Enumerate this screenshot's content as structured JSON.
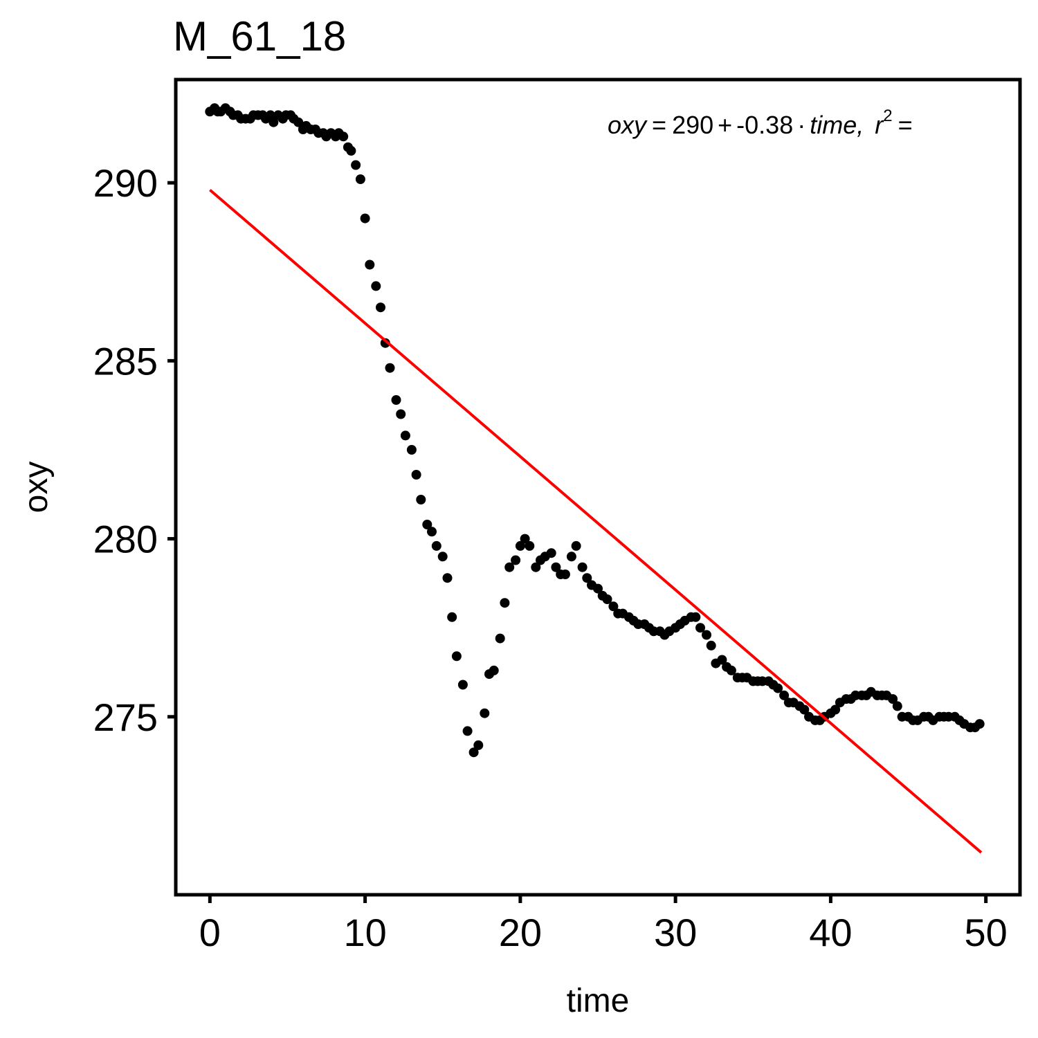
{
  "colors": {
    "points": "#000000",
    "fit_line": "#ff0000",
    "frame": "#000000",
    "background": "#ffffff"
  },
  "chart_data": {
    "type": "scatter",
    "title": "M_61_18",
    "xlabel": "time",
    "ylabel": "oxy",
    "xlim": [
      -2.2,
      52.2
    ],
    "ylim": [
      270.0,
      292.9
    ],
    "x_ticks": [
      0,
      10,
      20,
      30,
      40,
      50
    ],
    "y_ticks": [
      275,
      280,
      285,
      290
    ],
    "x_tick_labels": [
      "0",
      "10",
      "20",
      "30",
      "40",
      "50"
    ],
    "y_tick_labels": [
      "275",
      "280",
      "285",
      "290"
    ],
    "grid": false,
    "legend": "none",
    "annotation": {
      "y_symbol": "oxy",
      "eq_sign": "=",
      "intercept": "290",
      "plus_sign": "+",
      "slope": "-0.38",
      "dot": "·",
      "x_symbol": "time",
      "comma": ",",
      "r2_symbol": "r",
      "r2_superscript": "2",
      "r2_eq": "="
    },
    "fit": {
      "intercept": 289.8,
      "slope": -0.3745,
      "x_start": 0,
      "x_end": 49.7
    },
    "series": [
      {
        "x": [
          0.0,
          0.3,
          0.5,
          0.7,
          1.0,
          1.3,
          1.5,
          1.8,
          2.0,
          2.3,
          2.6,
          2.8,
          3.1,
          3.4,
          3.6,
          3.9,
          4.1,
          4.4,
          4.7,
          4.9,
          5.2,
          5.4,
          5.7,
          6.0,
          6.2,
          6.5,
          6.8,
          7.0,
          7.3,
          7.5,
          7.8,
          8.1,
          8.3,
          8.6,
          8.9,
          9.1,
          9.4,
          9.7,
          10.0,
          10.3,
          10.7,
          11.0,
          11.3,
          11.6,
          12.0,
          12.3,
          12.6,
          13.0,
          13.3,
          13.6,
          14.0,
          14.3,
          14.6,
          15.0,
          15.3,
          15.6,
          15.9,
          16.3,
          16.6,
          17.0,
          17.3,
          17.7,
          18.0,
          18.3,
          18.7,
          19.0,
          19.3,
          19.7,
          20.0,
          20.3,
          20.6,
          21.0,
          21.3,
          21.6,
          22.0,
          22.3,
          22.6,
          22.9,
          23.3,
          23.6,
          24.0,
          24.3,
          24.6,
          25.0,
          25.3,
          25.6,
          26.0,
          26.3,
          26.6,
          27.0,
          27.3,
          27.6,
          28.0,
          28.3,
          28.6,
          29.0,
          29.3,
          29.6,
          30.0,
          30.3,
          30.6,
          31.0,
          31.3,
          31.6,
          32.0,
          32.3,
          32.6,
          33.0,
          33.3,
          33.6,
          34.0,
          34.3,
          34.6,
          35.0,
          35.3,
          35.6,
          36.0,
          36.3,
          36.6,
          37.0,
          37.3,
          37.6,
          38.0,
          38.3,
          38.6,
          39.0,
          39.3,
          39.6,
          40.0,
          40.3,
          40.6,
          41.0,
          41.3,
          41.6,
          42.0,
          42.3,
          42.6,
          43.0,
          43.3,
          43.6,
          44.0,
          44.3,
          44.6,
          45.0,
          45.3,
          45.6,
          46.0,
          46.3,
          46.6,
          47.0,
          47.3,
          47.6,
          48.0,
          48.3,
          48.6,
          49.0,
          49.3,
          49.6
        ],
        "y": [
          292.0,
          292.1,
          292.0,
          292.0,
          292.1,
          292.0,
          291.9,
          291.9,
          291.8,
          291.8,
          291.8,
          291.9,
          291.9,
          291.9,
          291.8,
          291.9,
          291.7,
          291.9,
          291.8,
          291.9,
          291.9,
          291.8,
          291.7,
          291.5,
          291.6,
          291.5,
          291.5,
          291.4,
          291.4,
          291.3,
          291.4,
          291.3,
          291.4,
          291.3,
          291.0,
          290.9,
          290.5,
          290.1,
          289.0,
          287.7,
          287.1,
          286.5,
          285.5,
          284.8,
          283.9,
          283.5,
          282.9,
          282.5,
          281.8,
          281.1,
          280.4,
          280.2,
          279.8,
          279.5,
          278.9,
          277.8,
          276.7,
          275.9,
          274.6,
          274.0,
          274.2,
          275.1,
          276.2,
          276.3,
          277.2,
          278.2,
          279.2,
          279.4,
          279.8,
          280.0,
          279.8,
          279.2,
          279.4,
          279.5,
          279.6,
          279.2,
          279.0,
          279.0,
          279.5,
          279.8,
          279.2,
          278.9,
          278.7,
          278.6,
          278.4,
          278.3,
          278.1,
          277.9,
          277.9,
          277.8,
          277.7,
          277.6,
          277.6,
          277.5,
          277.4,
          277.4,
          277.3,
          277.4,
          277.5,
          277.6,
          277.7,
          277.8,
          277.8,
          277.5,
          277.3,
          277.0,
          276.5,
          276.6,
          276.4,
          276.3,
          276.1,
          276.1,
          276.1,
          276.0,
          276.0,
          276.0,
          276.0,
          275.9,
          275.8,
          275.6,
          275.4,
          275.4,
          275.3,
          275.2,
          275.0,
          274.9,
          274.9,
          275.0,
          275.1,
          275.2,
          275.4,
          275.5,
          275.5,
          275.6,
          275.6,
          275.6,
          275.7,
          275.6,
          275.6,
          275.6,
          275.5,
          275.3,
          275.0,
          275.0,
          274.9,
          274.9,
          275.0,
          275.0,
          274.9,
          275.0,
          275.0,
          275.0,
          275.0,
          274.9,
          274.8,
          274.7,
          274.7,
          274.8
        ]
      }
    ]
  }
}
